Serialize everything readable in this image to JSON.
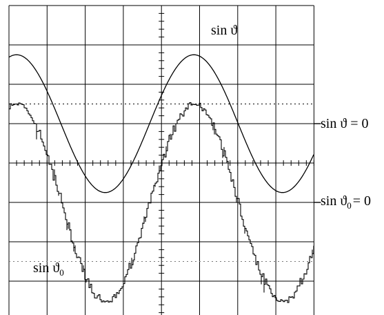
{
  "chart_data": {
    "type": "line",
    "grid": true,
    "series": [
      {
        "name": "sin ϑ",
        "style": "smooth",
        "amplitude_div": 1.75,
        "offset_div": 1.0,
        "period_div": 4.65,
        "peak_x_div": 4.85
      },
      {
        "name": "sin ϑ0",
        "style": "stepped-noisy",
        "amplitude_div": 2.5,
        "offset_div": -1.0,
        "period_div": 4.65,
        "peak_x_div": 4.85
      }
    ],
    "reference_levels": [
      {
        "label_main": "sin ϑ = 0",
        "level_div": 1.0
      },
      {
        "label_main": "sin ϑ",
        "label_sub": "0",
        "label_tail": "= 0",
        "level_div": -1.0
      }
    ],
    "trace_labels": [
      {
        "label_main": "sin ϑ"
      },
      {
        "label_main": "sin ϑ",
        "label_sub": "0"
      }
    ]
  },
  "colors": {
    "trace": "#000000",
    "grid": "#000000",
    "background": "#ffffff"
  }
}
